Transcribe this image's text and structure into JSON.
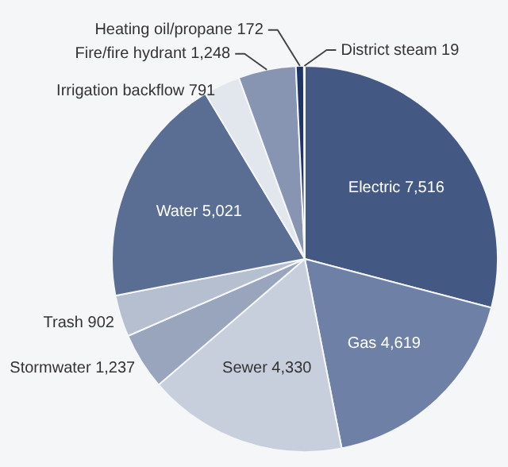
{
  "chart_data": {
    "type": "pie",
    "categories": [
      "Electric",
      "Gas",
      "Sewer",
      "Stormwater",
      "Trash",
      "Water",
      "Irrigation backflow",
      "Fire/fire hydrant",
      "Heating oil/propane",
      "District steam"
    ],
    "values": [
      7516,
      4619,
      4330,
      1237,
      902,
      5021,
      791,
      1248,
      172,
      19
    ],
    "value_labels": [
      "7,516",
      "4,619",
      "4,330",
      "1,237",
      "902",
      "5,021",
      "791",
      "1,248",
      "172",
      "19"
    ],
    "colors": [
      "#435883",
      "#6e80a6",
      "#c8cfdc",
      "#98a5bd",
      "#b5bfd0",
      "#5a6d93",
      "#e2e6ed",
      "#8795b3",
      "#1f3566",
      "#dfe3ea"
    ]
  }
}
